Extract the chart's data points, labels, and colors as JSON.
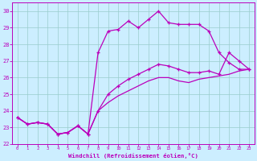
{
  "bg_color": "#cceeff",
  "line_color": "#bb00bb",
  "grid_color": "#99cccc",
  "xlim": [
    -0.5,
    23.5
  ],
  "ylim": [
    22,
    30.5
  ],
  "xticks": [
    0,
    1,
    2,
    3,
    4,
    5,
    6,
    7,
    8,
    9,
    10,
    11,
    12,
    13,
    14,
    15,
    16,
    17,
    18,
    19,
    20,
    21,
    22,
    23
  ],
  "yticks": [
    22,
    23,
    24,
    25,
    26,
    27,
    28,
    29,
    30
  ],
  "xlabel": "Windchill (Refroidissement éolien,°C)",
  "line1_x": [
    0,
    1,
    2,
    3,
    4,
    5,
    6,
    7,
    8,
    9,
    10,
    11,
    12,
    13,
    14,
    15,
    16,
    17,
    18,
    19,
    20,
    21,
    22,
    23
  ],
  "line1_y": [
    23.6,
    23.2,
    23.3,
    23.2,
    22.6,
    22.7,
    23.1,
    22.6,
    27.5,
    28.8,
    28.9,
    29.4,
    29.0,
    29.5,
    30.0,
    29.3,
    29.2,
    29.2,
    29.2,
    28.8,
    27.5,
    26.9,
    26.5,
    26.5
  ],
  "line2_x": [
    0,
    1,
    2,
    3,
    4,
    5,
    6,
    7,
    8,
    9,
    10,
    11,
    12,
    13,
    14,
    15,
    16,
    17,
    18,
    19,
    20,
    21,
    22,
    23
  ],
  "line2_y": [
    23.6,
    23.2,
    23.3,
    23.2,
    22.6,
    22.7,
    23.1,
    22.6,
    24.0,
    25.0,
    25.5,
    25.9,
    26.2,
    26.5,
    26.8,
    26.7,
    26.5,
    26.3,
    26.3,
    26.4,
    26.2,
    27.5,
    27.0,
    26.5
  ],
  "line3_x": [
    0,
    1,
    2,
    3,
    4,
    5,
    6,
    7,
    8,
    9,
    10,
    11,
    12,
    13,
    14,
    15,
    16,
    17,
    18,
    19,
    20,
    21,
    22,
    23
  ],
  "line3_y": [
    23.6,
    23.2,
    23.3,
    23.2,
    22.6,
    22.7,
    23.1,
    22.6,
    24.0,
    24.5,
    24.9,
    25.2,
    25.5,
    25.8,
    26.0,
    26.0,
    25.8,
    25.7,
    25.9,
    26.0,
    26.1,
    26.2,
    26.4,
    26.5
  ]
}
